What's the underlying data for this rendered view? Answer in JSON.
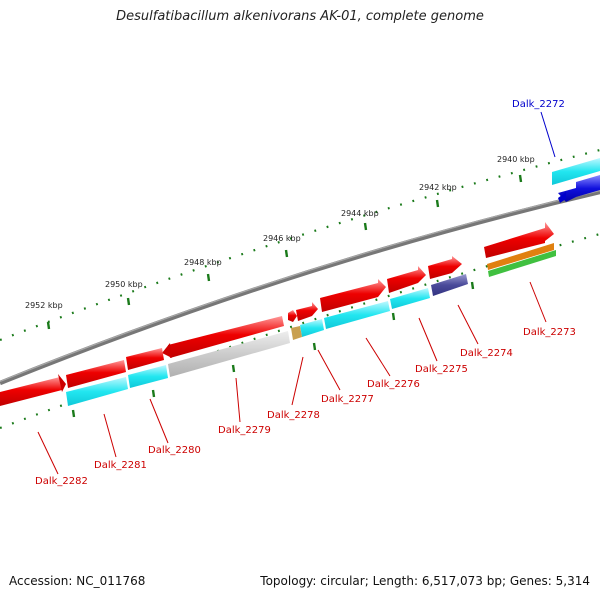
{
  "title": "Desulfatibacillum alkenivorans AK-01, complete genome",
  "footer": {
    "accession_label": "Accession:",
    "accession": "NC_011768",
    "topology_label": "Topology:",
    "topology": "circular;",
    "length_label": "Length:",
    "length": "6,517,073 bp;",
    "genes_label": "Genes:",
    "genes": "5,314"
  },
  "colors": {
    "backbone": "#7a7a7a",
    "tick": "#1a7a1a",
    "gene_forward": "#ee0000",
    "gene_reverse": "#1010dd",
    "cds_cyan": "#22e6f0",
    "cds_gray": "#c8c8c8",
    "cds_tan": "#c8a050",
    "cds_navy": "#4a4a9a",
    "cds_orange": "#e08010",
    "cds_green": "#40c040",
    "label_forward": "#cc0000",
    "label_reverse": "#0000cc"
  },
  "scale_labels": [
    "2940 kbp",
    "2942 kbp",
    "2944 kbp",
    "2946 kbp",
    "2948 kbp",
    "2950 kbp",
    "2952 kbp"
  ],
  "genes": [
    {
      "label": "Dalk_2272",
      "strand": "reverse"
    },
    {
      "label": "Dalk_2273",
      "strand": "forward"
    },
    {
      "label": "Dalk_2274",
      "strand": "forward"
    },
    {
      "label": "Dalk_2275",
      "strand": "forward"
    },
    {
      "label": "Dalk_2276",
      "strand": "forward"
    },
    {
      "label": "Dalk_2277",
      "strand": "forward"
    },
    {
      "label": "Dalk_2278",
      "strand": "forward"
    },
    {
      "label": "Dalk_2279",
      "strand": "forward"
    },
    {
      "label": "Dalk_2280",
      "strand": "forward"
    },
    {
      "label": "Dalk_2281",
      "strand": "forward"
    },
    {
      "label": "Dalk_2282",
      "strand": "forward"
    }
  ]
}
